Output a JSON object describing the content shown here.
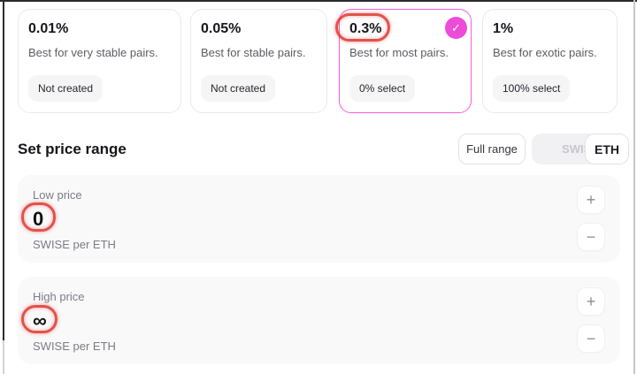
{
  "fee_tiers": [
    {
      "percent": "0.01%",
      "description": "Best for very stable pairs.",
      "badge": "Not created",
      "selected": false
    },
    {
      "percent": "0.05%",
      "description": "Best for stable pairs.",
      "badge": "Not created",
      "selected": false
    },
    {
      "percent": "0.3%",
      "description": "Best for most pairs.",
      "badge": "0% select",
      "selected": true
    },
    {
      "percent": "1%",
      "description": "Best for exotic pairs.",
      "badge": "100% select",
      "selected": false
    }
  ],
  "price_range": {
    "title": "Set price range",
    "full_range_label": "Full range",
    "toggle": {
      "options": [
        "SWISE",
        "ETH"
      ],
      "selected": "ETH"
    },
    "low": {
      "label": "Low price",
      "value": "0",
      "unit": "SWISE per ETH"
    },
    "high": {
      "label": "High price",
      "value": "∞",
      "unit": "SWISE per ETH"
    }
  },
  "icons": {
    "check": "✓",
    "plus": "+",
    "minus": "−"
  },
  "colors": {
    "accent_pink": "#ee4bd8",
    "selected_border": "#f45fdc",
    "annotation_red": "#e23e37",
    "card_bg": "#f9f9fa",
    "badge_bg": "#f5f5f6"
  }
}
